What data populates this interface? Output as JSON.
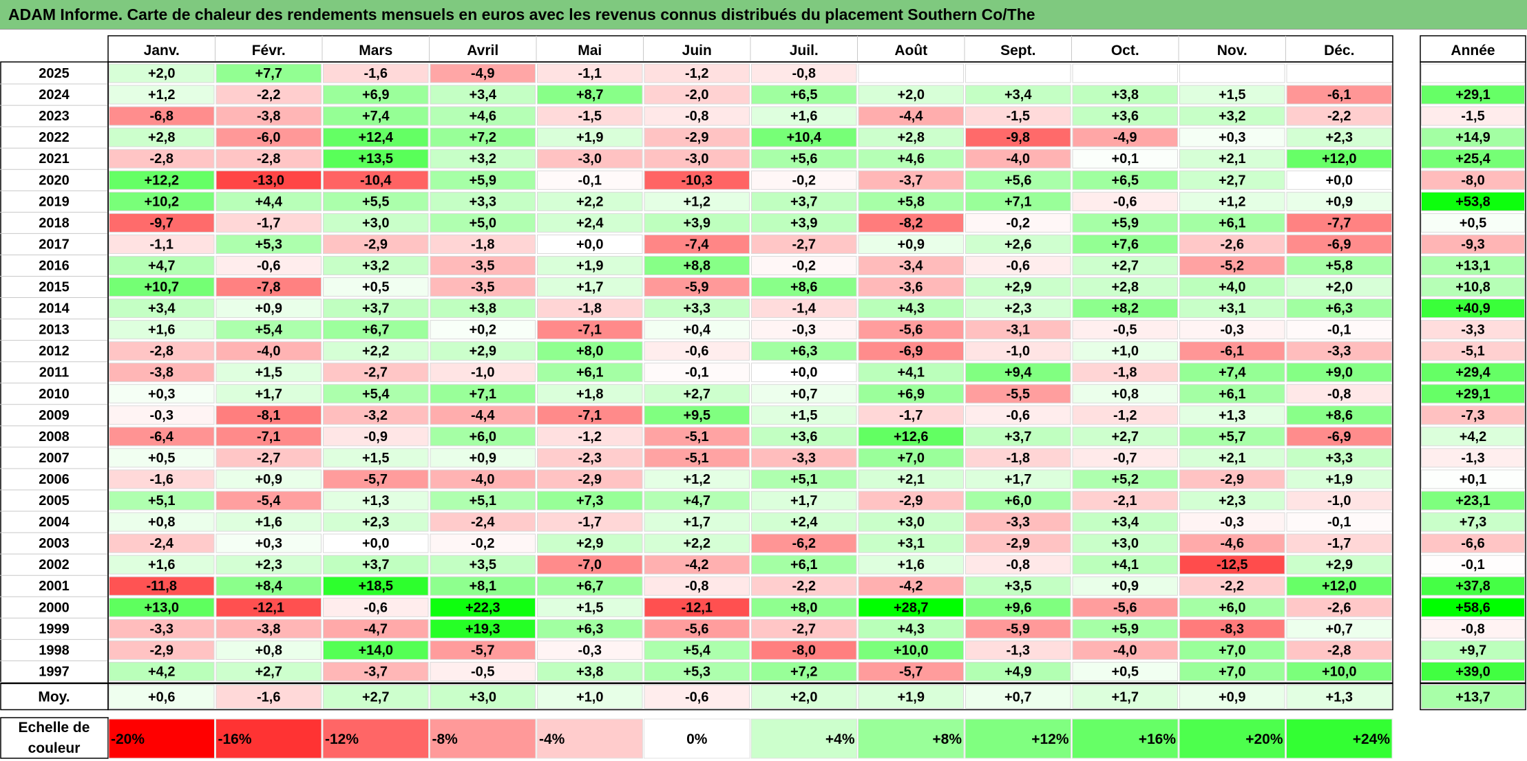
{
  "title": "ADAM Informe. Carte de chaleur des rendements mensuels en euros avec les revenus connus distribués du placement Southern Co/The",
  "chart_data": {
    "type": "heatmap",
    "months": [
      "Janv.",
      "Févr.",
      "Mars",
      "Avril",
      "Mai",
      "Juin",
      "Juil.",
      "Août",
      "Sept.",
      "Oct.",
      "Nov.",
      "Déc."
    ],
    "annual_header": "Année",
    "rows": [
      {
        "year": "2025",
        "values": [
          "+2,0",
          "+7,7",
          "-1,6",
          "-4,9",
          "-1,1",
          "-1,2",
          "-0,8",
          "",
          "",
          "",
          "",
          ""
        ],
        "annual": ""
      },
      {
        "year": "2024",
        "values": [
          "+1,2",
          "-2,2",
          "+6,9",
          "+3,4",
          "+8,7",
          "-2,0",
          "+6,5",
          "+2,0",
          "+3,4",
          "+3,8",
          "+1,5",
          "-6,1"
        ],
        "annual": "+29,1"
      },
      {
        "year": "2023",
        "values": [
          "-6,8",
          "-3,8",
          "+7,4",
          "+4,6",
          "-1,5",
          "-0,8",
          "+1,6",
          "-4,4",
          "-1,5",
          "+3,6",
          "+3,2",
          "-2,2"
        ],
        "annual": "-1,5"
      },
      {
        "year": "2022",
        "values": [
          "+2,8",
          "-6,0",
          "+12,4",
          "+7,2",
          "+1,9",
          "-2,9",
          "+10,4",
          "+2,8",
          "-9,8",
          "-4,9",
          "+0,3",
          "+2,3"
        ],
        "annual": "+14,9"
      },
      {
        "year": "2021",
        "values": [
          "-2,8",
          "-2,8",
          "+13,5",
          "+3,2",
          "-3,0",
          "-3,0",
          "+5,6",
          "+4,6",
          "-4,0",
          "+0,1",
          "+2,1",
          "+12,0"
        ],
        "annual": "+25,4"
      },
      {
        "year": "2020",
        "values": [
          "+12,2",
          "-13,0",
          "-10,4",
          "+5,9",
          "-0,1",
          "-10,3",
          "-0,2",
          "-3,7",
          "+5,6",
          "+6,5",
          "+2,7",
          "+0,0"
        ],
        "annual": "-8,0"
      },
      {
        "year": "2019",
        "values": [
          "+10,2",
          "+4,4",
          "+5,5",
          "+3,3",
          "+2,2",
          "+1,2",
          "+3,7",
          "+5,8",
          "+7,1",
          "-0,6",
          "+1,2",
          "+0,9"
        ],
        "annual": "+53,8"
      },
      {
        "year": "2018",
        "values": [
          "-9,7",
          "-1,7",
          "+3,0",
          "+5,0",
          "+2,4",
          "+3,9",
          "+3,9",
          "-8,2",
          "-0,2",
          "+5,9",
          "+6,1",
          "-7,7"
        ],
        "annual": "+0,5"
      },
      {
        "year": "2017",
        "values": [
          "-1,1",
          "+5,3",
          "-2,9",
          "-1,8",
          "+0,0",
          "-7,4",
          "-2,7",
          "+0,9",
          "+2,6",
          "+7,6",
          "-2,6",
          "-6,9"
        ],
        "annual": "-9,3"
      },
      {
        "year": "2016",
        "values": [
          "+4,7",
          "-0,6",
          "+3,2",
          "-3,5",
          "+1,9",
          "+8,8",
          "-0,2",
          "-3,4",
          "-0,6",
          "+2,7",
          "-5,2",
          "+5,8"
        ],
        "annual": "+13,1"
      },
      {
        "year": "2015",
        "values": [
          "+10,7",
          "-7,8",
          "+0,5",
          "-3,5",
          "+1,7",
          "-5,9",
          "+8,6",
          "-3,6",
          "+2,9",
          "+2,8",
          "+4,0",
          "+2,0"
        ],
        "annual": "+10,8"
      },
      {
        "year": "2014",
        "values": [
          "+3,4",
          "+0,9",
          "+3,7",
          "+3,8",
          "-1,8",
          "+3,3",
          "-1,4",
          "+4,3",
          "+2,3",
          "+8,2",
          "+3,1",
          "+6,3"
        ],
        "annual": "+40,9"
      },
      {
        "year": "2013",
        "values": [
          "+1,6",
          "+5,4",
          "+6,7",
          "+0,2",
          "-7,1",
          "+0,4",
          "-0,3",
          "-5,6",
          "-3,1",
          "-0,5",
          "-0,3",
          "-0,1"
        ],
        "annual": "-3,3"
      },
      {
        "year": "2012",
        "values": [
          "-2,8",
          "-4,0",
          "+2,2",
          "+2,9",
          "+8,0",
          "-0,6",
          "+6,3",
          "-6,9",
          "-1,0",
          "+1,0",
          "-6,1",
          "-3,3"
        ],
        "annual": "-5,1"
      },
      {
        "year": "2011",
        "values": [
          "-3,8",
          "+1,5",
          "-2,7",
          "-1,0",
          "+6,1",
          "-0,1",
          "+0,0",
          "+4,1",
          "+9,4",
          "-1,8",
          "+7,4",
          "+9,0"
        ],
        "annual": "+29,4"
      },
      {
        "year": "2010",
        "values": [
          "+0,3",
          "+1,7",
          "+5,4",
          "+7,1",
          "+1,8",
          "+2,7",
          "+0,7",
          "+6,9",
          "-5,5",
          "+0,8",
          "+6,1",
          "-0,8"
        ],
        "annual": "+29,1"
      },
      {
        "year": "2009",
        "values": [
          "-0,3",
          "-8,1",
          "-3,2",
          "-4,4",
          "-7,1",
          "+9,5",
          "+1,5",
          "-1,7",
          "-0,6",
          "-1,2",
          "+1,3",
          "+8,6"
        ],
        "annual": "-7,3"
      },
      {
        "year": "2008",
        "values": [
          "-6,4",
          "-7,1",
          "-0,9",
          "+6,0",
          "-1,2",
          "-5,1",
          "+3,6",
          "+12,6",
          "+3,7",
          "+2,7",
          "+5,7",
          "-6,9"
        ],
        "annual": "+4,2"
      },
      {
        "year": "2007",
        "values": [
          "+0,5",
          "-2,7",
          "+1,5",
          "+0,9",
          "-2,3",
          "-5,1",
          "-3,3",
          "+7,0",
          "-1,8",
          "-0,7",
          "+2,1",
          "+3,3"
        ],
        "annual": "-1,3"
      },
      {
        "year": "2006",
        "values": [
          "-1,6",
          "+0,9",
          "-5,7",
          "-4,0",
          "-2,9",
          "+1,2",
          "+5,1",
          "+2,1",
          "+1,7",
          "+5,2",
          "-2,9",
          "+1,9"
        ],
        "annual": "+0,1"
      },
      {
        "year": "2005",
        "values": [
          "+5,1",
          "-5,4",
          "+1,3",
          "+5,1",
          "+7,3",
          "+4,7",
          "+1,7",
          "-2,9",
          "+6,0",
          "-2,1",
          "+2,3",
          "-1,0"
        ],
        "annual": "+23,1"
      },
      {
        "year": "2004",
        "values": [
          "+0,8",
          "+1,6",
          "+2,3",
          "-2,4",
          "-1,7",
          "+1,7",
          "+2,4",
          "+3,0",
          "-3,3",
          "+3,4",
          "-0,3",
          "-0,1"
        ],
        "annual": "+7,3"
      },
      {
        "year": "2003",
        "values": [
          "-2,4",
          "+0,3",
          "+0,0",
          "-0,2",
          "+2,9",
          "+2,2",
          "-6,2",
          "+3,1",
          "-2,9",
          "+3,0",
          "-4,6",
          "-1,7"
        ],
        "annual": "-6,6"
      },
      {
        "year": "2002",
        "values": [
          "+1,6",
          "+2,3",
          "+3,7",
          "+3,5",
          "-7,0",
          "-4,2",
          "+6,1",
          "+1,6",
          "-0,8",
          "+4,1",
          "-12,5",
          "+2,9"
        ],
        "annual": "-0,1"
      },
      {
        "year": "2001",
        "values": [
          "-11,8",
          "+8,4",
          "+18,5",
          "+8,1",
          "+6,7",
          "-0,8",
          "-2,2",
          "-4,2",
          "+3,5",
          "+0,9",
          "-2,2",
          "+12,0"
        ],
        "annual": "+37,8"
      },
      {
        "year": "2000",
        "values": [
          "+13,0",
          "-12,1",
          "-0,6",
          "+22,3",
          "+1,5",
          "-12,1",
          "+8,0",
          "+28,7",
          "+9,6",
          "-5,6",
          "+6,0",
          "-2,6"
        ],
        "annual": "+58,6"
      },
      {
        "year": "1999",
        "values": [
          "-3,3",
          "-3,8",
          "-4,7",
          "+19,3",
          "+6,3",
          "-5,6",
          "-2,7",
          "+4,3",
          "-5,9",
          "+5,9",
          "-8,3",
          "+0,7"
        ],
        "annual": "-0,8"
      },
      {
        "year": "1998",
        "values": [
          "-2,9",
          "+0,8",
          "+14,0",
          "-5,7",
          "-0,3",
          "+5,4",
          "-8,0",
          "+10,0",
          "-1,3",
          "-4,0",
          "+7,0",
          "-2,8"
        ],
        "annual": "+9,7"
      },
      {
        "year": "1997",
        "values": [
          "+4,2",
          "+2,7",
          "-3,7",
          "-0,5",
          "+3,8",
          "+5,3",
          "+7,2",
          "-5,7",
          "+4,9",
          "+0,5",
          "+7,0",
          "+10,0"
        ],
        "annual": "+39,0"
      }
    ],
    "average": {
      "label": "Moy.",
      "values": [
        "+0,6",
        "-1,6",
        "+2,7",
        "+3,0",
        "+1,0",
        "-0,6",
        "+2,0",
        "+1,9",
        "+0,7",
        "+1,7",
        "+0,9",
        "+1,3"
      ],
      "annual": "+13,7"
    },
    "scale": {
      "label_line1": "Echelle de",
      "label_line2": "couleur",
      "steps": [
        {
          "label": "-20%",
          "value": -20,
          "color": "#ff0000"
        },
        {
          "label": "-16%",
          "value": -16,
          "color": "#ff3333"
        },
        {
          "label": "-12%",
          "value": -12,
          "color": "#ff6666"
        },
        {
          "label": "-8%",
          "value": -8,
          "color": "#ff9999"
        },
        {
          "label": "-4%",
          "value": -4,
          "color": "#ffcccc"
        },
        {
          "label": "0%",
          "value": 0,
          "color": "#ffffff"
        },
        {
          "label": "+4%",
          "value": 4,
          "color": "#ccffcc"
        },
        {
          "label": "+8%",
          "value": 8,
          "color": "#99ff99"
        },
        {
          "label": "+12%",
          "value": 12,
          "color": "#80ff80"
        },
        {
          "label": "+16%",
          "value": 16,
          "color": "#66ff66"
        },
        {
          "label": "+20%",
          "value": 20,
          "color": "#4dff4d"
        },
        {
          "label": "+24%",
          "value": 24,
          "color": "#33ff33"
        }
      ]
    },
    "colors": {
      "title_bar": "#7fc97f",
      "negative_max": "#ff0000",
      "positive_max": "#00ff00",
      "zero": "#ffffff"
    }
  }
}
